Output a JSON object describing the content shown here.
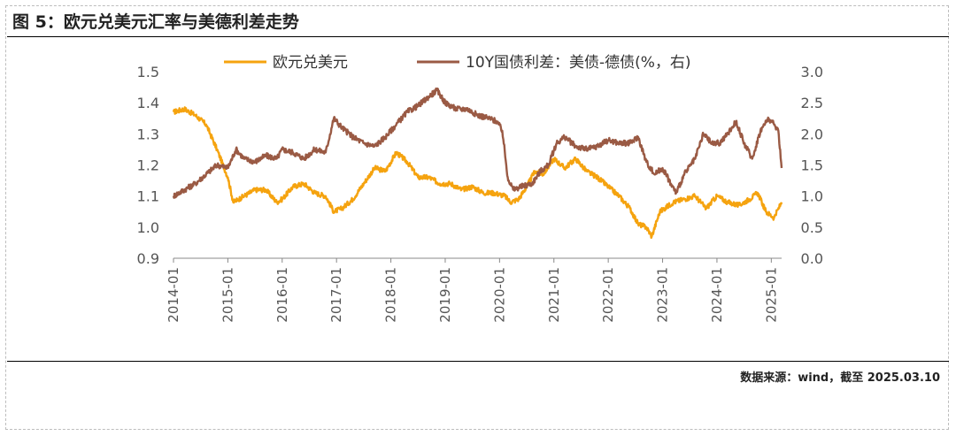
{
  "title": "图 5：欧元兑美元汇率与美德利差走势",
  "source": "数据来源：wind，截至 2025.03.10",
  "colors": {
    "eur": "#f5a30f",
    "spread": "#9a5a44",
    "axis": "#888888",
    "text": "#555555"
  },
  "chart_data": {
    "type": "line",
    "title": "",
    "legend": [
      "欧元兑美元",
      "10Y国债利差：美债-德债(%，右)"
    ],
    "legend_position": "top-center",
    "grid": false,
    "x_ticks": [
      "2014-01",
      "2015-01",
      "2016-01",
      "2017-01",
      "2018-01",
      "2019-01",
      "2020-01",
      "2021-01",
      "2022-01",
      "2023-01",
      "2024-01",
      "2025-01"
    ],
    "y_left": {
      "ticks": [
        "0.9",
        "1.0",
        "1.1",
        "1.2",
        "1.3",
        "1.4",
        "1.5"
      ],
      "min": 0.9,
      "max": 1.5
    },
    "y_right": {
      "ticks": [
        "0.0",
        "0.5",
        "1.0",
        "1.5",
        "2.0",
        "2.5",
        "3.0"
      ],
      "min": 0.0,
      "max": 3.0
    },
    "x_start": 2014.0,
    "x_end": 2025.19,
    "series": [
      {
        "name": "欧元兑美元",
        "axis": "left",
        "points": [
          [
            2014.0,
            1.37
          ],
          [
            2014.2,
            1.38
          ],
          [
            2014.4,
            1.36
          ],
          [
            2014.6,
            1.33
          ],
          [
            2014.8,
            1.25
          ],
          [
            2015.0,
            1.16
          ],
          [
            2015.1,
            1.08
          ],
          [
            2015.3,
            1.1
          ],
          [
            2015.5,
            1.12
          ],
          [
            2015.7,
            1.12
          ],
          [
            2015.9,
            1.08
          ],
          [
            2016.0,
            1.09
          ],
          [
            2016.2,
            1.13
          ],
          [
            2016.4,
            1.14
          ],
          [
            2016.6,
            1.11
          ],
          [
            2016.8,
            1.1
          ],
          [
            2016.95,
            1.05
          ],
          [
            2017.1,
            1.06
          ],
          [
            2017.3,
            1.09
          ],
          [
            2017.5,
            1.14
          ],
          [
            2017.7,
            1.19
          ],
          [
            2017.9,
            1.18
          ],
          [
            2018.1,
            1.24
          ],
          [
            2018.3,
            1.21
          ],
          [
            2018.5,
            1.16
          ],
          [
            2018.7,
            1.16
          ],
          [
            2018.9,
            1.14
          ],
          [
            2019.1,
            1.14
          ],
          [
            2019.3,
            1.12
          ],
          [
            2019.5,
            1.13
          ],
          [
            2019.7,
            1.11
          ],
          [
            2019.9,
            1.11
          ],
          [
            2020.1,
            1.1
          ],
          [
            2020.2,
            1.08
          ],
          [
            2020.35,
            1.09
          ],
          [
            2020.5,
            1.13
          ],
          [
            2020.65,
            1.18
          ],
          [
            2020.8,
            1.17
          ],
          [
            2021.0,
            1.22
          ],
          [
            2021.2,
            1.19
          ],
          [
            2021.4,
            1.22
          ],
          [
            2021.6,
            1.18
          ],
          [
            2021.8,
            1.16
          ],
          [
            2022.0,
            1.13
          ],
          [
            2022.2,
            1.1
          ],
          [
            2022.4,
            1.06
          ],
          [
            2022.55,
            1.01
          ],
          [
            2022.7,
            1.0
          ],
          [
            2022.8,
            0.97
          ],
          [
            2022.95,
            1.05
          ],
          [
            2023.2,
            1.08
          ],
          [
            2023.4,
            1.09
          ],
          [
            2023.6,
            1.1
          ],
          [
            2023.8,
            1.06
          ],
          [
            2024.0,
            1.1
          ],
          [
            2024.2,
            1.08
          ],
          [
            2024.4,
            1.07
          ],
          [
            2024.6,
            1.09
          ],
          [
            2024.75,
            1.11
          ],
          [
            2024.9,
            1.05
          ],
          [
            2025.05,
            1.03
          ],
          [
            2025.19,
            1.08
          ]
        ]
      },
      {
        "name": "10Y国债利差：美债-德债(%，右)",
        "axis": "right",
        "points": [
          [
            2014.0,
            1.0
          ],
          [
            2014.2,
            1.1
          ],
          [
            2014.4,
            1.2
          ],
          [
            2014.6,
            1.35
          ],
          [
            2014.8,
            1.5
          ],
          [
            2015.0,
            1.45
          ],
          [
            2015.15,
            1.75
          ],
          [
            2015.3,
            1.6
          ],
          [
            2015.5,
            1.55
          ],
          [
            2015.7,
            1.65
          ],
          [
            2015.9,
            1.6
          ],
          [
            2016.0,
            1.75
          ],
          [
            2016.2,
            1.7
          ],
          [
            2016.4,
            1.6
          ],
          [
            2016.6,
            1.75
          ],
          [
            2016.8,
            1.7
          ],
          [
            2016.95,
            2.25
          ],
          [
            2017.1,
            2.1
          ],
          [
            2017.3,
            1.95
          ],
          [
            2017.5,
            1.85
          ],
          [
            2017.7,
            1.8
          ],
          [
            2017.9,
            1.95
          ],
          [
            2018.1,
            2.15
          ],
          [
            2018.3,
            2.35
          ],
          [
            2018.5,
            2.45
          ],
          [
            2018.7,
            2.6
          ],
          [
            2018.85,
            2.7
          ],
          [
            2019.0,
            2.5
          ],
          [
            2019.2,
            2.4
          ],
          [
            2019.4,
            2.4
          ],
          [
            2019.6,
            2.3
          ],
          [
            2019.8,
            2.25
          ],
          [
            2019.95,
            2.2
          ],
          [
            2020.05,
            2.05
          ],
          [
            2020.15,
            1.3
          ],
          [
            2020.25,
            1.1
          ],
          [
            2020.4,
            1.15
          ],
          [
            2020.6,
            1.2
          ],
          [
            2020.75,
            1.4
          ],
          [
            2020.9,
            1.5
          ],
          [
            2021.05,
            1.85
          ],
          [
            2021.2,
            1.95
          ],
          [
            2021.4,
            1.8
          ],
          [
            2021.6,
            1.75
          ],
          [
            2021.8,
            1.8
          ],
          [
            2022.0,
            1.9
          ],
          [
            2022.2,
            1.85
          ],
          [
            2022.4,
            1.85
          ],
          [
            2022.55,
            1.95
          ],
          [
            2022.7,
            1.55
          ],
          [
            2022.85,
            1.35
          ],
          [
            2023.0,
            1.45
          ],
          [
            2023.15,
            1.2
          ],
          [
            2023.25,
            1.05
          ],
          [
            2023.4,
            1.35
          ],
          [
            2023.6,
            1.6
          ],
          [
            2023.75,
            2.0
          ],
          [
            2023.9,
            1.85
          ],
          [
            2024.05,
            1.85
          ],
          [
            2024.2,
            2.0
          ],
          [
            2024.35,
            2.2
          ],
          [
            2024.5,
            1.85
          ],
          [
            2024.65,
            1.6
          ],
          [
            2024.8,
            2.05
          ],
          [
            2024.95,
            2.25
          ],
          [
            2025.05,
            2.15
          ],
          [
            2025.13,
            2.05
          ],
          [
            2025.19,
            1.45
          ]
        ]
      }
    ]
  }
}
